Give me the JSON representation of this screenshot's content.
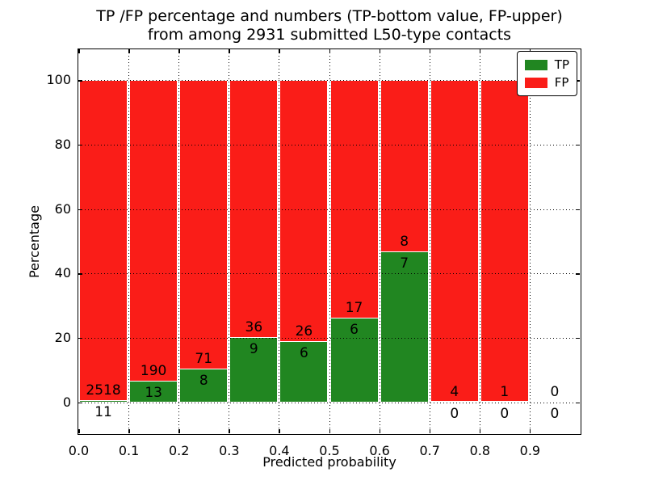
{
  "title": {
    "line1": "TP /FP percentage and numbers (TP-bottom value, FP-upper)",
    "line2": "from among 2931 submitted L50-type contacts"
  },
  "axes": {
    "xlabel": "Predicted probability",
    "ylabel": "Percentage",
    "x_tick_labels": [
      "0.0",
      "0.1",
      "0.2",
      "0.3",
      "0.4",
      "0.5",
      "0.6",
      "0.7",
      "0.8",
      "0.9"
    ],
    "y_tick_labels": [
      "0",
      "20",
      "40",
      "60",
      "80",
      "100"
    ]
  },
  "legend": {
    "items": [
      {
        "label": "TP",
        "color": "#218621"
      },
      {
        "label": "FP",
        "color": "#fa1d18"
      }
    ]
  },
  "colors": {
    "tp_green": "#218621",
    "fp_red": "#fa1d18",
    "grid": "#000000",
    "frame": "#000000",
    "background": "#ffffff"
  },
  "chart_data": {
    "type": "bar",
    "stacked": true,
    "unit": "percent",
    "title": "TP /FP percentage and numbers (TP-bottom value, FP-upper) from among 2931 submitted L50-type contacts",
    "xlabel": "Predicted probability",
    "ylabel": "Percentage",
    "total_contacts": 2931,
    "bin_edges": [
      0.0,
      0.1,
      0.2,
      0.3,
      0.4,
      0.5,
      0.6,
      0.7,
      0.8,
      0.9,
      1.0
    ],
    "categories": [
      "0.0-0.1",
      "0.1-0.2",
      "0.2-0.3",
      "0.3-0.4",
      "0.4-0.5",
      "0.5-0.6",
      "0.6-0.7",
      "0.7-0.8",
      "0.8-0.9",
      "0.9-1.0"
    ],
    "series": [
      {
        "name": "TP",
        "color": "#218621",
        "counts": [
          11,
          13,
          8,
          9,
          6,
          6,
          7,
          0,
          0,
          0
        ],
        "percent": [
          0.43,
          6.4,
          10.13,
          20.0,
          18.75,
          26.09,
          46.67,
          0,
          0,
          0
        ]
      },
      {
        "name": "FP",
        "color": "#fa1d18",
        "counts": [
          2518,
          190,
          71,
          36,
          26,
          17,
          8,
          4,
          1,
          0
        ],
        "percent": [
          99.57,
          93.6,
          89.87,
          80.0,
          81.25,
          73.91,
          53.33,
          100,
          100,
          0
        ]
      }
    ],
    "xticks": [
      0.0,
      0.1,
      0.2,
      0.3,
      0.4,
      0.5,
      0.6,
      0.7,
      0.8,
      0.9
    ],
    "yticks": [
      0,
      20,
      40,
      60,
      80,
      100
    ],
    "xlim": [
      0.0,
      1.0
    ],
    "ylim": [
      -10,
      110
    ],
    "grid": true,
    "grid_style": "dotted",
    "legend_position": "upper right"
  }
}
